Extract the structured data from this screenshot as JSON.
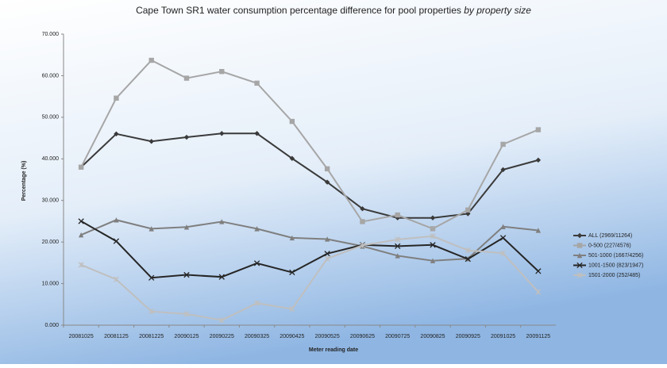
{
  "chart_data": {
    "type": "line",
    "title": "Cape Town SR1 water consumption percentage difference for pool properties",
    "title_italic": "by property size",
    "x_label": "Meter reading date",
    "y_label": "Percentage (%)",
    "categories": [
      "20081025",
      "20081125",
      "20081225",
      "20090125",
      "20090225",
      "20090325",
      "20090425",
      "20090525",
      "20090625",
      "20090725",
      "20090825",
      "20090925",
      "20091025",
      "20091125"
    ],
    "ylim": [
      0,
      70
    ],
    "yticks": [
      {
        "value": 0,
        "label": "0.000"
      },
      {
        "value": 10,
        "label": "10.000"
      },
      {
        "value": 20,
        "label": "20.000"
      },
      {
        "value": 30,
        "label": "30.000"
      },
      {
        "value": 40,
        "label": "40.000"
      },
      {
        "value": 50,
        "label": "50.000"
      },
      {
        "value": 60,
        "label": "60.000"
      },
      {
        "value": 70,
        "label": "70.000"
      }
    ],
    "legend": "right",
    "series": [
      {
        "name": "ALL (2969/11264)",
        "color": "#3a3a3a",
        "marker": "diamond",
        "values": [
          38,
          46,
          44.2,
          45.2,
          46.1,
          46.1,
          40.1,
          34.4,
          28,
          25.8,
          25.8,
          26.8,
          37.4,
          39.7
        ]
      },
      {
        "name": "0-500 (227/4576)",
        "color": "#a6a6a6",
        "marker": "square",
        "values": [
          38,
          54.6,
          63.7,
          59.4,
          61,
          58.2,
          49,
          37.6,
          24.9,
          26.5,
          23.2,
          27.7,
          43.5,
          47
        ]
      },
      {
        "name": "501-1000 (1667/4256)",
        "color": "#7f7f7f",
        "marker": "triangle",
        "values": [
          21.7,
          25.3,
          23.2,
          23.6,
          24.9,
          23.2,
          21,
          20.7,
          19,
          16.7,
          15.5,
          16,
          23.7,
          22.8
        ]
      },
      {
        "name": "1001-1500 (823/1947)",
        "color": "#262626",
        "marker": "cross",
        "values": [
          25,
          20.2,
          11.4,
          12.1,
          11.6,
          14.9,
          12.7,
          17.2,
          19.3,
          19,
          19.3,
          15.9,
          21,
          13
        ]
      },
      {
        "name": "1501-2000 (252/485)",
        "color": "#bfbfbf",
        "marker": "star",
        "values": [
          14.5,
          11,
          3.3,
          2.7,
          1.2,
          5.3,
          3.9,
          16,
          19.2,
          20.6,
          21.4,
          18,
          17.3,
          8
        ]
      }
    ]
  }
}
